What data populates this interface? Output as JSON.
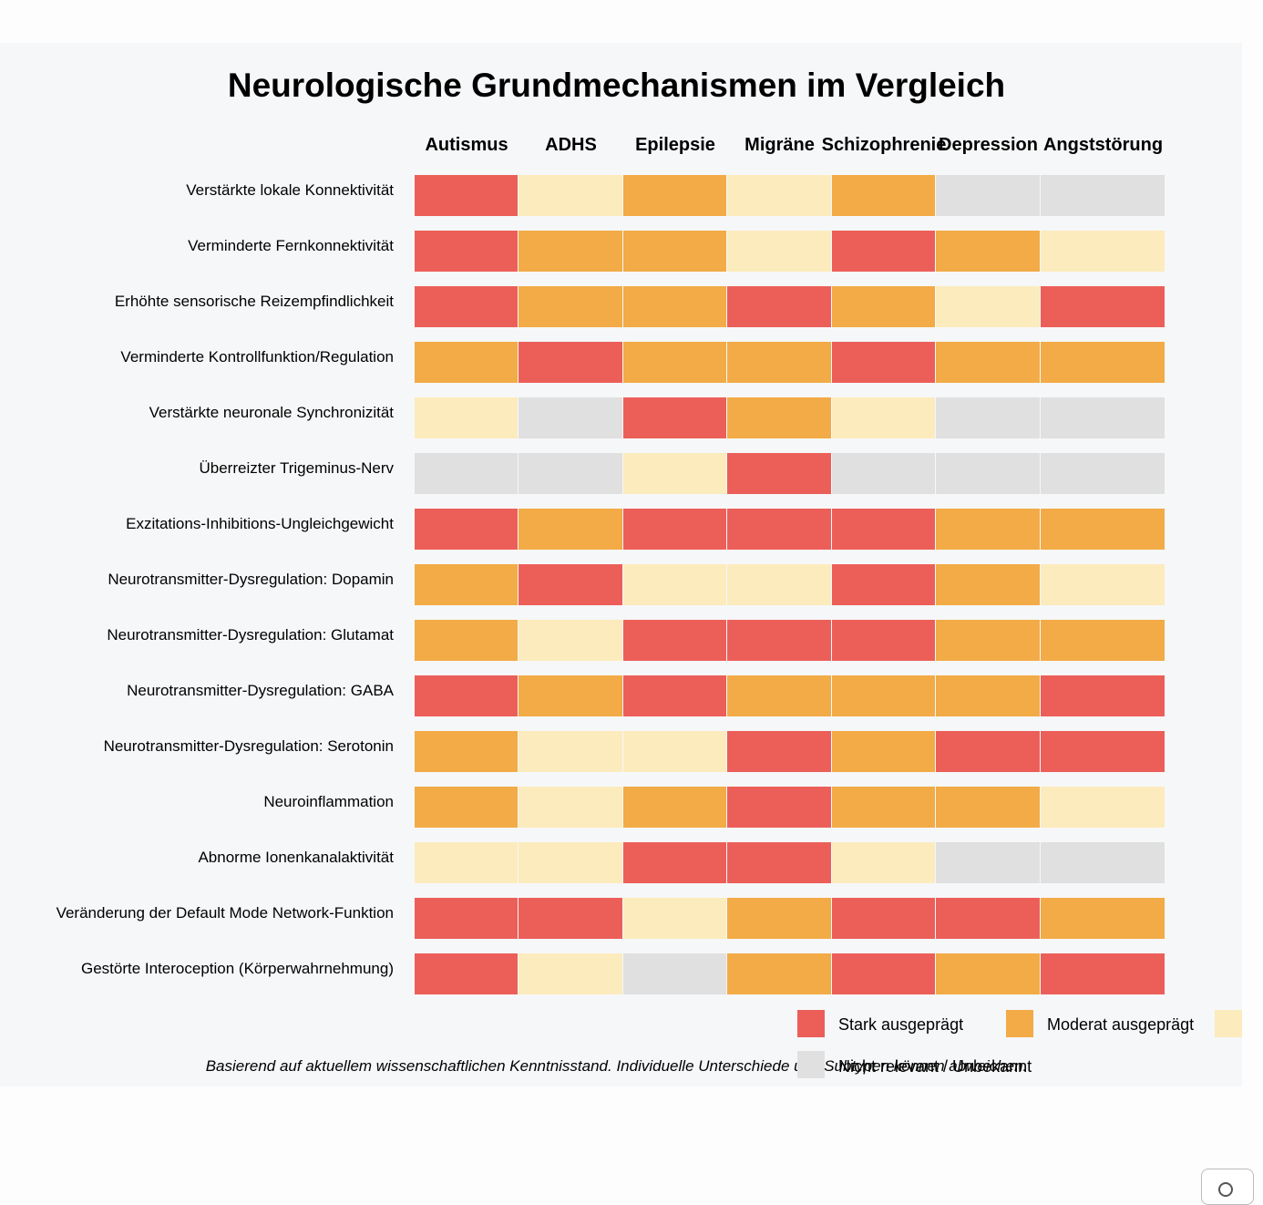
{
  "chart_data": {
    "type": "heatmap",
    "title": "Neurologische Grundmechanismen im Vergleich",
    "columns": [
      "Autismus",
      "ADHS",
      "Epilepsie",
      "Migräne",
      "Schizophrenie",
      "Depression",
      "Angststörung"
    ],
    "rows": [
      "Verstärkte lokale Konnektivität",
      "Verminderte Fernkonnektivität",
      "Erhöhte sensorische Reizempfindlichkeit",
      "Verminderte Kontrollfunktion/Regulation",
      "Verstärkte neuronale Synchronizität",
      "Überreizter Trigeminus-Nerv",
      "Exzitations-Inhibitions-Ungleichgewicht",
      "Neurotransmitter-Dysregulation: Dopamin",
      "Neurotransmitter-Dysregulation: Glutamat",
      "Neurotransmitter-Dysregulation: GABA",
      "Neurotransmitter-Dysregulation: Serotonin",
      "Neuroinflammation",
      "Abnorme Ionenkanalaktivität",
      "Veränderung der Default Mode Network-Funktion",
      "Gestörte Interoception (Körperwahrnehmung)"
    ],
    "levels": {
      "3": {
        "label": "Stark ausgeprägt",
        "color": "#ec5f59"
      },
      "2": {
        "label": "Moderat ausgeprägt",
        "color": "#f2ab46"
      },
      "1": {
        "label": "",
        "color": "#fcebbc"
      },
      "0": {
        "label": "Nicht relevant / Unbekannt",
        "color": "#e0e0e0"
      }
    },
    "legend_order": [
      "3",
      "2",
      "1",
      "0"
    ],
    "values": [
      [
        3,
        1,
        2,
        1,
        2,
        0,
        0
      ],
      [
        3,
        2,
        2,
        1,
        3,
        2,
        1
      ],
      [
        3,
        2,
        2,
        3,
        2,
        1,
        3
      ],
      [
        2,
        3,
        2,
        2,
        3,
        2,
        2
      ],
      [
        1,
        0,
        3,
        2,
        1,
        0,
        0
      ],
      [
        0,
        0,
        1,
        3,
        0,
        0,
        0
      ],
      [
        3,
        2,
        3,
        3,
        3,
        2,
        2
      ],
      [
        2,
        3,
        1,
        1,
        3,
        2,
        1
      ],
      [
        2,
        1,
        3,
        3,
        3,
        2,
        2
      ],
      [
        3,
        2,
        3,
        2,
        2,
        2,
        3
      ],
      [
        2,
        1,
        1,
        3,
        2,
        3,
        3
      ],
      [
        2,
        1,
        2,
        3,
        2,
        2,
        1
      ],
      [
        1,
        1,
        3,
        3,
        1,
        0,
        0
      ],
      [
        3,
        3,
        1,
        2,
        3,
        3,
        2
      ],
      [
        3,
        1,
        0,
        2,
        3,
        2,
        3
      ]
    ],
    "footnote": "Basierend auf aktuellem wissenschaftlichen Kenntnisstand. Individuelle Unterschiede und Subtypen können abweichen."
  }
}
